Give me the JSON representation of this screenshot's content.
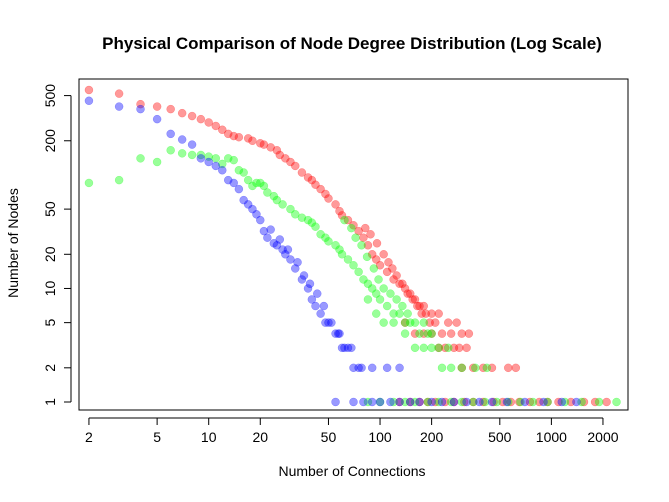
{
  "chart_data": {
    "type": "scatter",
    "title": "Physical Comparison of Node Degree Distribution (Log Scale)",
    "xlabel": "Number of Connections",
    "ylabel": "Number of Nodes",
    "x_scale": "log",
    "y_scale": "log",
    "xlim": [
      1.75,
      2800
    ],
    "ylim": [
      0.85,
      700
    ],
    "x_ticks": [
      {
        "value": 2,
        "label": "2"
      },
      {
        "value": 5,
        "label": "5"
      },
      {
        "value": 10,
        "label": "10"
      },
      {
        "value": 20,
        "label": "20"
      },
      {
        "value": 50,
        "label": "50"
      },
      {
        "value": 100,
        "label": "100"
      },
      {
        "value": 200,
        "label": "200"
      },
      {
        "value": 500,
        "label": "500"
      },
      {
        "value": 1000,
        "label": "1000"
      },
      {
        "value": 2000,
        "label": "2000"
      }
    ],
    "y_ticks": [
      {
        "value": 1,
        "label": "1"
      },
      {
        "value": 2,
        "label": "2"
      },
      {
        "value": 5,
        "label": "5"
      },
      {
        "value": 10,
        "label": "10"
      },
      {
        "value": 20,
        "label": "20"
      },
      {
        "value": 50,
        "label": "50"
      },
      {
        "value": 200,
        "label": "200"
      },
      {
        "value": 500,
        "label": "500"
      }
    ],
    "grid": false,
    "legend": null,
    "series": [
      {
        "color": "#ff0000",
        "points": [
          [
            2,
            560
          ],
          [
            3,
            520
          ],
          [
            4,
            420
          ],
          [
            5,
            400
          ],
          [
            6,
            380
          ],
          [
            7,
            350
          ],
          [
            8,
            330
          ],
          [
            9,
            310
          ],
          [
            10,
            290
          ],
          [
            11,
            270
          ],
          [
            12,
            250
          ],
          [
            13,
            230
          ],
          [
            14,
            220
          ],
          [
            15,
            215
          ],
          [
            17,
            210
          ],
          [
            18,
            200
          ],
          [
            20,
            190
          ],
          [
            21,
            185
          ],
          [
            23,
            175
          ],
          [
            25,
            165
          ],
          [
            26,
            150
          ],
          [
            28,
            140
          ],
          [
            30,
            130
          ],
          [
            32,
            120
          ],
          [
            35,
            105
          ],
          [
            38,
            95
          ],
          [
            40,
            90
          ],
          [
            42,
            82
          ],
          [
            45,
            75
          ],
          [
            48,
            68
          ],
          [
            50,
            62
          ],
          [
            55,
            55
          ],
          [
            58,
            48
          ],
          [
            60,
            44
          ],
          [
            65,
            40
          ],
          [
            70,
            36
          ],
          [
            75,
            32
          ],
          [
            80,
            28
          ],
          [
            85,
            24
          ],
          [
            90,
            20
          ],
          [
            95,
            18
          ],
          [
            100,
            16
          ],
          [
            110,
            14
          ],
          [
            120,
            12
          ],
          [
            130,
            11
          ],
          [
            140,
            10
          ],
          [
            150,
            9
          ],
          [
            160,
            8
          ],
          [
            170,
            7
          ],
          [
            180,
            7
          ],
          [
            200,
            6
          ],
          [
            220,
            6
          ],
          [
            250,
            5
          ],
          [
            280,
            5
          ],
          [
            300,
            4
          ],
          [
            330,
            4
          ],
          [
            82,
            34
          ],
          [
            88,
            30
          ],
          [
            96,
            25
          ],
          [
            105,
            20
          ],
          [
            112,
            17
          ],
          [
            118,
            15
          ],
          [
            125,
            13
          ],
          [
            135,
            11
          ],
          [
            145,
            9
          ],
          [
            155,
            8
          ],
          [
            165,
            7
          ],
          [
            175,
            6
          ],
          [
            185,
            6
          ],
          [
            195,
            5
          ],
          [
            210,
            5
          ],
          [
            230,
            4
          ],
          [
            260,
            4
          ],
          [
            290,
            3
          ],
          [
            320,
            3
          ],
          [
            140,
            5
          ],
          [
            160,
            4
          ],
          [
            180,
            4
          ],
          [
            200,
            4
          ],
          [
            220,
            3
          ],
          [
            240,
            3
          ],
          [
            270,
            3
          ],
          [
            300,
            2
          ],
          [
            350,
            2
          ],
          [
            400,
            2
          ],
          [
            450,
            2
          ],
          [
            560,
            2
          ],
          [
            620,
            2
          ],
          [
            130,
            1
          ],
          [
            150,
            1
          ],
          [
            170,
            1
          ],
          [
            190,
            1
          ],
          [
            210,
            1
          ],
          [
            240,
            1
          ],
          [
            270,
            1
          ],
          [
            310,
            1
          ],
          [
            350,
            1
          ],
          [
            400,
            1
          ],
          [
            460,
            1
          ],
          [
            520,
            1
          ],
          [
            580,
            1
          ],
          [
            650,
            1
          ],
          [
            750,
            1
          ],
          [
            850,
            1
          ],
          [
            950,
            1
          ],
          [
            1100,
            1
          ],
          [
            1300,
            1
          ],
          [
            1550,
            1
          ],
          [
            1800,
            1
          ],
          [
            2100,
            1
          ]
        ]
      },
      {
        "color": "#00ff00",
        "points": [
          [
            2,
            85
          ],
          [
            3,
            90
          ],
          [
            4,
            140
          ],
          [
            5,
            130
          ],
          [
            6,
            165
          ],
          [
            7,
            155
          ],
          [
            8,
            150
          ],
          [
            9,
            150
          ],
          [
            10,
            145
          ],
          [
            11,
            140
          ],
          [
            12,
            125
          ],
          [
            13,
            140
          ],
          [
            14,
            135
          ],
          [
            15,
            110
          ],
          [
            16,
            105
          ],
          [
            17,
            90
          ],
          [
            18,
            80
          ],
          [
            19,
            85
          ],
          [
            20,
            85
          ],
          [
            21,
            80
          ],
          [
            22,
            70
          ],
          [
            24,
            65
          ],
          [
            25,
            60
          ],
          [
            27,
            55
          ],
          [
            30,
            50
          ],
          [
            32,
            45
          ],
          [
            35,
            42
          ],
          [
            38,
            40
          ],
          [
            40,
            38
          ],
          [
            42,
            35
          ],
          [
            45,
            30
          ],
          [
            48,
            28
          ],
          [
            50,
            26
          ],
          [
            55,
            24
          ],
          [
            58,
            22
          ],
          [
            60,
            20
          ],
          [
            65,
            18
          ],
          [
            70,
            16
          ],
          [
            75,
            14
          ],
          [
            80,
            12
          ],
          [
            85,
            11
          ],
          [
            90,
            10
          ],
          [
            95,
            9
          ],
          [
            100,
            8
          ],
          [
            110,
            7
          ],
          [
            120,
            6
          ],
          [
            130,
            6
          ],
          [
            140,
            5
          ],
          [
            150,
            5
          ],
          [
            170,
            4
          ],
          [
            190,
            4
          ],
          [
            220,
            3
          ],
          [
            250,
            3
          ],
          [
            62,
            40
          ],
          [
            68,
            34
          ],
          [
            72,
            28
          ],
          [
            78,
            24
          ],
          [
            84,
            19
          ],
          [
            92,
            15
          ],
          [
            98,
            12
          ],
          [
            105,
            10
          ],
          [
            115,
            9
          ],
          [
            125,
            8
          ],
          [
            135,
            7
          ],
          [
            145,
            6
          ],
          [
            160,
            5
          ],
          [
            180,
            5
          ],
          [
            200,
            4
          ],
          [
            85,
            8
          ],
          [
            95,
            6
          ],
          [
            105,
            5
          ],
          [
            120,
            5
          ],
          [
            140,
            4
          ],
          [
            160,
            3
          ],
          [
            180,
            3
          ],
          [
            200,
            3
          ],
          [
            230,
            2
          ],
          [
            260,
            2
          ],
          [
            300,
            2
          ],
          [
            360,
            2
          ],
          [
            420,
            2
          ],
          [
            85,
            1
          ],
          [
            100,
            1
          ],
          [
            120,
            1
          ],
          [
            140,
            1
          ],
          [
            160,
            1
          ],
          [
            190,
            1
          ],
          [
            220,
            1
          ],
          [
            260,
            1
          ],
          [
            300,
            1
          ],
          [
            350,
            1
          ],
          [
            410,
            1
          ],
          [
            480,
            1
          ],
          [
            560,
            1
          ],
          [
            660,
            1
          ],
          [
            780,
            1
          ],
          [
            950,
            1
          ],
          [
            1200,
            1
          ],
          [
            1500,
            1
          ],
          [
            1900,
            1
          ],
          [
            2400,
            1
          ]
        ]
      },
      {
        "color": "#0000ff",
        "points": [
          [
            2,
            450
          ],
          [
            3,
            400
          ],
          [
            4,
            380
          ],
          [
            5,
            310
          ],
          [
            6,
            230
          ],
          [
            7,
            205
          ],
          [
            8,
            185
          ],
          [
            9,
            140
          ],
          [
            10,
            130
          ],
          [
            11,
            120
          ],
          [
            12,
            110
          ],
          [
            13,
            90
          ],
          [
            14,
            85
          ],
          [
            15,
            75
          ],
          [
            16,
            60
          ],
          [
            17,
            55
          ],
          [
            18,
            50
          ],
          [
            19,
            45
          ],
          [
            20,
            40
          ],
          [
            21,
            32
          ],
          [
            22,
            28
          ],
          [
            24,
            25
          ],
          [
            25,
            24
          ],
          [
            27,
            22
          ],
          [
            28,
            20
          ],
          [
            30,
            18
          ],
          [
            32,
            15
          ],
          [
            35,
            12
          ],
          [
            38,
            10
          ],
          [
            40,
            8
          ],
          [
            42,
            7
          ],
          [
            45,
            6
          ],
          [
            48,
            5
          ],
          [
            50,
            5
          ],
          [
            55,
            4
          ],
          [
            58,
            4
          ],
          [
            60,
            3
          ],
          [
            65,
            3
          ],
          [
            70,
            2
          ],
          [
            75,
            2
          ],
          [
            55,
            1
          ],
          [
            70,
            1
          ],
          [
            80,
            1
          ],
          [
            90,
            1
          ],
          [
            100,
            1
          ],
          [
            115,
            1
          ],
          [
            130,
            1
          ],
          [
            150,
            1
          ],
          [
            170,
            1
          ],
          [
            200,
            1
          ],
          [
            230,
            1
          ],
          [
            270,
            1
          ],
          [
            320,
            1
          ],
          [
            380,
            1
          ],
          [
            450,
            1
          ],
          [
            550,
            1
          ],
          [
            700,
            1
          ],
          [
            900,
            1
          ],
          [
            1150,
            1
          ],
          [
            1400,
            1
          ],
          [
            23,
            33
          ],
          [
            26,
            27
          ],
          [
            29,
            22
          ],
          [
            33,
            17
          ],
          [
            36,
            13
          ],
          [
            39,
            11
          ],
          [
            43,
            9
          ],
          [
            47,
            7
          ],
          [
            52,
            5
          ],
          [
            57,
            4
          ],
          [
            62,
            3
          ],
          [
            68,
            3
          ],
          [
            78,
            2
          ],
          [
            90,
            2
          ],
          [
            110,
            2
          ],
          [
            130,
            2
          ]
        ]
      }
    ]
  }
}
